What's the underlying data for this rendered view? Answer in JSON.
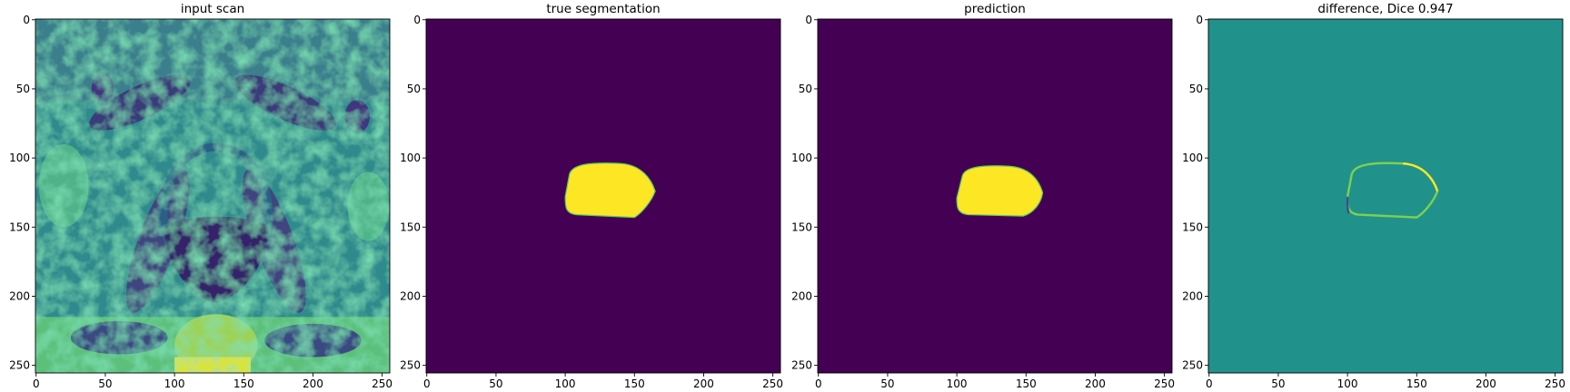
{
  "chart_data": [
    {
      "type": "image",
      "title": "input scan",
      "xlim": [
        -0.5,
        255.5
      ],
      "ylim": [
        255.5,
        -0.5
      ],
      "xticks": [
        0,
        50,
        100,
        150,
        200,
        250
      ],
      "yticks": [
        0,
        50,
        100,
        150,
        200,
        250
      ]
    },
    {
      "type": "image",
      "title": "true segmentation",
      "xlim": [
        -0.5,
        255.5
      ],
      "ylim": [
        255.5,
        -0.5
      ],
      "xticks": [
        0,
        50,
        100,
        150,
        200,
        250
      ],
      "yticks": [
        0,
        50,
        100,
        150,
        200,
        250
      ]
    },
    {
      "type": "image",
      "title": "prediction",
      "xlim": [
        -0.5,
        255.5
      ],
      "ylim": [
        255.5,
        -0.5
      ],
      "xticks": [
        0,
        50,
        100,
        150,
        200,
        250
      ],
      "yticks": [
        0,
        50,
        100,
        150,
        200,
        250
      ]
    },
    {
      "type": "image",
      "title": "difference, Dice 0.947",
      "xlim": [
        -0.5,
        255.5
      ],
      "ylim": [
        255.5,
        -0.5
      ],
      "xticks": [
        0,
        50,
        100,
        150,
        200,
        250
      ],
      "yticks": [
        0,
        50,
        100,
        150,
        200,
        250
      ]
    }
  ]
}
